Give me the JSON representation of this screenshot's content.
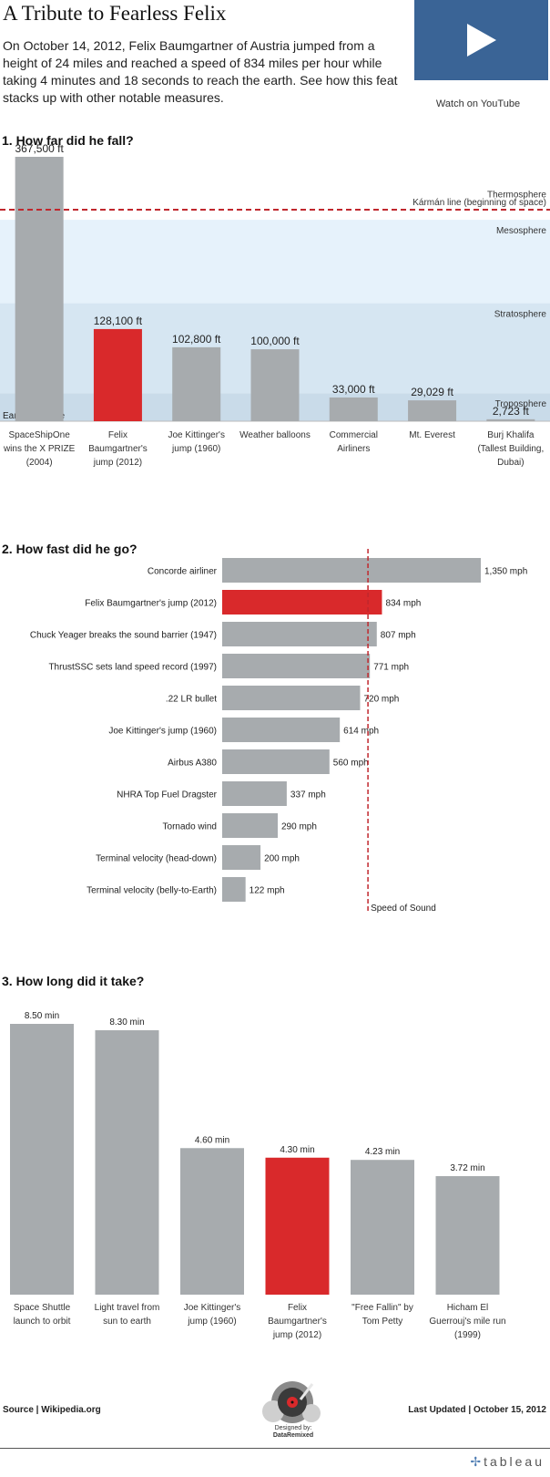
{
  "header": {
    "title": "A Tribute to Fearless Felix",
    "intro": "On October 14, 2012, Felix Baumgartner of Austria jumped from a height of 24 miles and reached a speed of 834 miles per hour while taking 4 minutes and 18 seconds to reach the earth. See how this feat stacks up with other notable measures.",
    "youtube_label": "Watch on YouTube",
    "youtube_icon": "play-icon"
  },
  "colors": {
    "highlight": "#d9292b",
    "bar": "#a7abae",
    "reference": "#c0272d",
    "troposphere": "#c9dbe9",
    "stratosphere": "#d6e6f2",
    "mesosphere": "#e6f2fb",
    "thermosphere": "#ffffff",
    "youtube_button": "#3a6496"
  },
  "chart_data": [
    {
      "type": "bar",
      "title": "1. How far did he fall?",
      "unit": "ft",
      "categories": [
        "SpaceShipOne wins the X PRIZE (2004)",
        "Felix Baumgartner's jump (2012)",
        "Joe Kittinger's jump (1960)",
        "Weather balloons",
        "Commercial Airliners",
        "Mt. Everest",
        "Burj Khalifa (Tallest Building, Dubai)"
      ],
      "category_lines": [
        [
          "SpaceShipOne",
          "wins the X PRIZE",
          "(2004)"
        ],
        [
          "Felix",
          "Baumgartner's",
          "jump (2012)"
        ],
        [
          "Joe Kittinger's",
          "jump (1960)"
        ],
        [
          "Weather balloons"
        ],
        [
          "Commercial",
          "Airliners"
        ],
        [
          "Mt. Everest"
        ],
        [
          "Burj Khalifa",
          "(Tallest Building,",
          "Dubai)"
        ]
      ],
      "values": [
        367500,
        128100,
        102800,
        100000,
        33000,
        29029,
        2723
      ],
      "data_labels": [
        "367,500 ft",
        "128,100 ft",
        "102,800 ft",
        "100,000 ft",
        "33,000 ft",
        "29,029 ft",
        "2,723 ft"
      ],
      "highlight_index": 1,
      "ylim": [
        0,
        400000
      ],
      "reference_lines": [
        {
          "label": "Kármán line (beginning of space)",
          "value": 330000
        }
      ],
      "bands": [
        {
          "label": "Troposphere",
          "from": 0,
          "to": 39000
        },
        {
          "label": "Stratosphere",
          "from": 39000,
          "to": 164000
        },
        {
          "label": "Mesosphere",
          "from": 164000,
          "to": 280000
        },
        {
          "label": "Thermosphere",
          "from": 280000,
          "to": 330000
        }
      ],
      "baseline_label": "Earth's Surface",
      "grid": false
    },
    {
      "type": "bar",
      "orientation": "horizontal",
      "title": "2. How fast did he go?",
      "unit": "mph",
      "categories": [
        "Concorde airliner",
        "Felix Baumgartner's jump (2012)",
        "Chuck Yeager breaks the sound barrier (1947)",
        "ThrustSSC sets land speed record (1997)",
        ".22 LR bullet",
        "Joe Kittinger's jump (1960)",
        "Airbus A380",
        "NHRA Top Fuel Dragster",
        "Tornado wind",
        "Terminal velocity (head-down)",
        "Terminal velocity (belly-to-Earth)"
      ],
      "values": [
        1350,
        834,
        807,
        771,
        720,
        614,
        560,
        337,
        290,
        200,
        122
      ],
      "data_labels": [
        "1,350 mph",
        "834 mph",
        "807 mph",
        "771 mph",
        "720 mph",
        "614 mph",
        "560 mph",
        "337 mph",
        "290 mph",
        "200 mph",
        "122 mph"
      ],
      "highlight_index": 1,
      "xlim": [
        0,
        1350
      ],
      "reference_lines": [
        {
          "label": "Speed of Sound",
          "value": 761
        }
      ],
      "grid": false
    },
    {
      "type": "bar",
      "title": "3. How long did it take?",
      "unit": "min",
      "categories": [
        "Space Shuttle launch to orbit",
        "Light travel from sun to earth",
        "Joe Kittinger's jump (1960)",
        "Felix Baumgartner's jump (2012)",
        "\"Free Fallin\" by Tom Petty",
        "Hicham El Guerrouj's mile run (1999)"
      ],
      "category_lines": [
        [
          "Space Shuttle",
          "launch to orbit"
        ],
        [
          "Light travel from",
          "sun to earth"
        ],
        [
          "Joe Kittinger's",
          "jump (1960)"
        ],
        [
          "Felix",
          "Baumgartner's",
          "jump (2012)"
        ],
        [
          "\"Free Fallin\" by",
          "Tom Petty"
        ],
        [
          "Hicham El",
          "Guerrouj's mile run",
          "(1999)"
        ]
      ],
      "values": [
        8.5,
        8.3,
        4.6,
        4.3,
        4.23,
        3.72
      ],
      "data_labels": [
        "8.50 min",
        "8.30 min",
        "4.60 min",
        "4.30 min",
        "4.23 min",
        "3.72 min"
      ],
      "highlight_index": 3,
      "ylim": [
        0,
        8.5
      ],
      "grid": false
    }
  ],
  "footer": {
    "source": "Source | Wikipedia.org",
    "updated": "Last Updated | October 15, 2012",
    "designed_by_label": "Designed by:",
    "designer": "DataRemixed",
    "logo_icon": "record-player-icon",
    "brand": "tableau",
    "brand_icon": "tableau-plus-icon"
  }
}
